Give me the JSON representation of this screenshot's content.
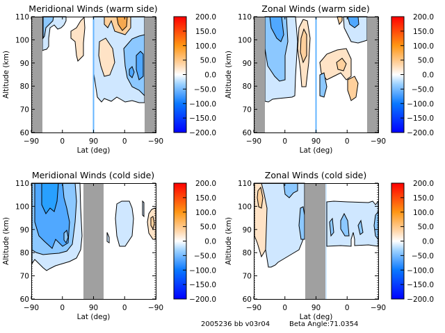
{
  "footer": {
    "run_id": "2005236 bb v03r04",
    "beta_label": "Beta Angle:",
    "beta_value": "71.0354"
  },
  "colorbar": {
    "min": -200.0,
    "max": 200.0,
    "tick_labels": [
      "200.0",
      "150.0",
      "100.0",
      "50.0",
      "0.0",
      "-50.0",
      "-100.0",
      "-150.0",
      "-200.0"
    ],
    "colors": [
      "#0000ff",
      "#0a78ff",
      "#82c6ff",
      "#ffffff",
      "#ffd2a0",
      "#ff9614",
      "#ff0000"
    ]
  },
  "chart_data": [
    {
      "type": "heatmap",
      "id": "meridional-warm",
      "title": "Meridional Winds (warm side)",
      "xlabel": "Lat (deg)",
      "ylabel": "Altitude (km)",
      "xtick_labels": [
        "-90",
        "0",
        "90",
        "0",
        "-90"
      ],
      "ytick_labels": [
        "60",
        "70",
        "80",
        "90",
        "100",
        "110"
      ],
      "ylim": [
        60,
        110
      ],
      "no_data_lat_bands": [
        [
          -90,
          -72
        ],
        [
          72,
          90
        ]
      ],
      "contour_levels": [
        -200,
        -150,
        -100,
        -50,
        -25,
        0,
        25,
        50,
        100,
        150,
        200
      ],
      "features": [
        {
          "region": "left half, lat -72 to -40, alt 73-110",
          "value_range": [
            -50,
            -25
          ]
        },
        {
          "region": "left half, lat 20 to 80, alt 80-103",
          "value_range": [
            0,
            25
          ]
        },
        {
          "region": "right half, lat 60 to 10 (descending), alt 72-110",
          "value_range": [
            -75,
            25
          ]
        },
        {
          "region": "right half, lat 10 to -10, alt 100-110",
          "value_range": [
            25,
            100
          ]
        },
        {
          "region": "right half, lat -30 to -72, alt 73-110",
          "value_range": [
            -100,
            -25
          ]
        }
      ]
    },
    {
      "type": "heatmap",
      "id": "zonal-warm",
      "title": "Zonal Winds (warm side)",
      "xlabel": "Lat (deg)",
      "ylabel": "Altitude (km)",
      "xtick_labels": [
        "-90",
        "0",
        "90",
        "0",
        "-90"
      ],
      "ytick_labels": [
        "60",
        "70",
        "80",
        "90",
        "100",
        "110"
      ],
      "ylim": [
        60,
        110
      ],
      "no_data_lat_bands": [
        [
          -90,
          -72
        ],
        [
          72,
          90
        ]
      ],
      "contour_levels": [
        -200,
        -150,
        -100,
        -50,
        -25,
        0,
        25,
        50,
        100,
        150,
        200
      ],
      "features": [
        {
          "region": "left half, lat -72 to 35, alt 73-110",
          "value_range": [
            -75,
            -25
          ]
        },
        {
          "region": "left half, lat 45 to 85, alt 75-110",
          "value_range": [
            0,
            50
          ]
        },
        {
          "region": "right half, lat 60 to -10, alt 75-105",
          "value_range": [
            0,
            50
          ]
        },
        {
          "region": "right half, lat 10 to -60, alt 95-110",
          "value_range": [
            -75,
            -25
          ]
        },
        {
          "region": "right half, lat -10 to -40, alt 72-85",
          "value_range": [
            0,
            50
          ]
        }
      ]
    },
    {
      "type": "heatmap",
      "id": "meridional-cold",
      "title": "Meridional Winds (cold side)",
      "xlabel": "Lat (deg)",
      "ylabel": "Altitude (km)",
      "xtick_labels": [
        "-90",
        "0",
        "90",
        "0",
        "-90"
      ],
      "ytick_labels": [
        "60",
        "70",
        "80",
        "90",
        "100",
        "110"
      ],
      "ylim": [
        60,
        110
      ],
      "no_data_lat_bands": [
        [
          60,
          90
        ],
        [
          90,
          120
        ]
      ],
      "contour_levels": [
        -200,
        -150,
        -100,
        -50,
        -25,
        0,
        25,
        50,
        100,
        150,
        200
      ],
      "features": [
        {
          "region": "left half, lat -90 to 60, alt 72-110",
          "value_range": [
            -100,
            -25
          ]
        },
        {
          "region": "right half, lat 40 to -20, alt 84-102",
          "value_range": [
            -50,
            -25
          ]
        },
        {
          "region": "right half, lat -70 to -90, alt 86-99",
          "value_range": [
            0,
            50
          ]
        }
      ]
    },
    {
      "type": "heatmap",
      "id": "zonal-cold",
      "title": "Zonal Winds (cold side)",
      "xlabel": "Lat (deg)",
      "ylabel": "Altitude (km)",
      "xtick_labels": [
        "-90",
        "0",
        "90",
        "0",
        "-90"
      ],
      "ytick_labels": [
        "60",
        "70",
        "80",
        "90",
        "100",
        "110"
      ],
      "ylim": [
        60,
        110
      ],
      "no_data_lat_bands": [
        [
          60,
          90
        ],
        [
          90,
          120
        ]
      ],
      "contour_levels": [
        -200,
        -150,
        -100,
        -50,
        -25,
        0,
        25,
        50,
        100,
        150,
        200
      ],
      "features": [
        {
          "region": "left half, lat -90 to -55, alt 78-110",
          "value_range": [
            0,
            50
          ]
        },
        {
          "region": "left half, lat -55 to 60, alt 73-110",
          "value_range": [
            -50,
            -25
          ]
        },
        {
          "region": "right half, lat 60 to -90, alt 83-102",
          "value_range": [
            -75,
            -25
          ]
        }
      ]
    }
  ]
}
